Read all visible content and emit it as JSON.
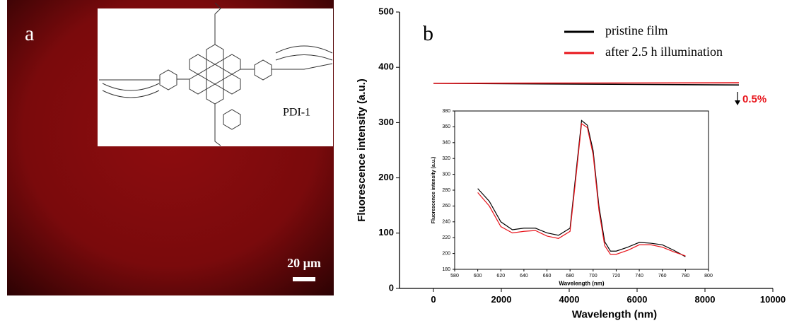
{
  "panel_a": {
    "label": "a",
    "compound": "PDI-1",
    "scale_bar": "20 µm"
  },
  "chart_data": [
    {
      "type": "line",
      "label": "b",
      "xlabel": "Wavelength (nm)",
      "ylabel": "Fluorescence intensity (a.u.)",
      "x": [
        0,
        9000
      ],
      "xlim": [
        -1000,
        10000
      ],
      "xticks": [
        0,
        2000,
        4000,
        6000,
        8000,
        10000
      ],
      "ylim": [
        0,
        500
      ],
      "yticks": [
        0,
        100,
        200,
        300,
        400,
        500
      ],
      "series": [
        {
          "name": "pristine film",
          "color": "#000000",
          "values": [
            371,
            368
          ]
        },
        {
          "name": "after 2.5 h illumination",
          "color": "#e8141b",
          "values": [
            371,
            372
          ]
        }
      ],
      "annotation": "0.5%"
    },
    {
      "type": "line",
      "xlabel": "Wavelength (nm)",
      "ylabel": "Fluorescence intensity (a.u.)",
      "x": [
        600,
        610,
        620,
        630,
        640,
        650,
        660,
        670,
        680,
        685,
        690,
        695,
        700,
        705,
        710,
        715,
        720,
        730,
        740,
        750,
        760,
        770,
        780
      ],
      "xlim": [
        580,
        800
      ],
      "xticks": [
        580,
        600,
        620,
        640,
        660,
        680,
        700,
        720,
        740,
        760,
        780,
        800
      ],
      "ylim": [
        180,
        380
      ],
      "yticks": [
        180,
        200,
        220,
        240,
        260,
        280,
        300,
        320,
        340,
        360,
        380
      ],
      "series": [
        {
          "color": "#000000",
          "values": [
            282,
            266,
            240,
            230,
            232,
            232,
            226,
            223,
            232,
            300,
            368,
            362,
            330,
            260,
            215,
            203,
            203,
            208,
            214,
            213,
            211,
            204,
            196
          ]
        },
        {
          "color": "#e8141b",
          "values": [
            277,
            260,
            234,
            226,
            228,
            229,
            222,
            219,
            228,
            295,
            364,
            359,
            325,
            255,
            210,
            199,
            199,
            204,
            211,
            211,
            208,
            202,
            197
          ]
        }
      ]
    }
  ]
}
